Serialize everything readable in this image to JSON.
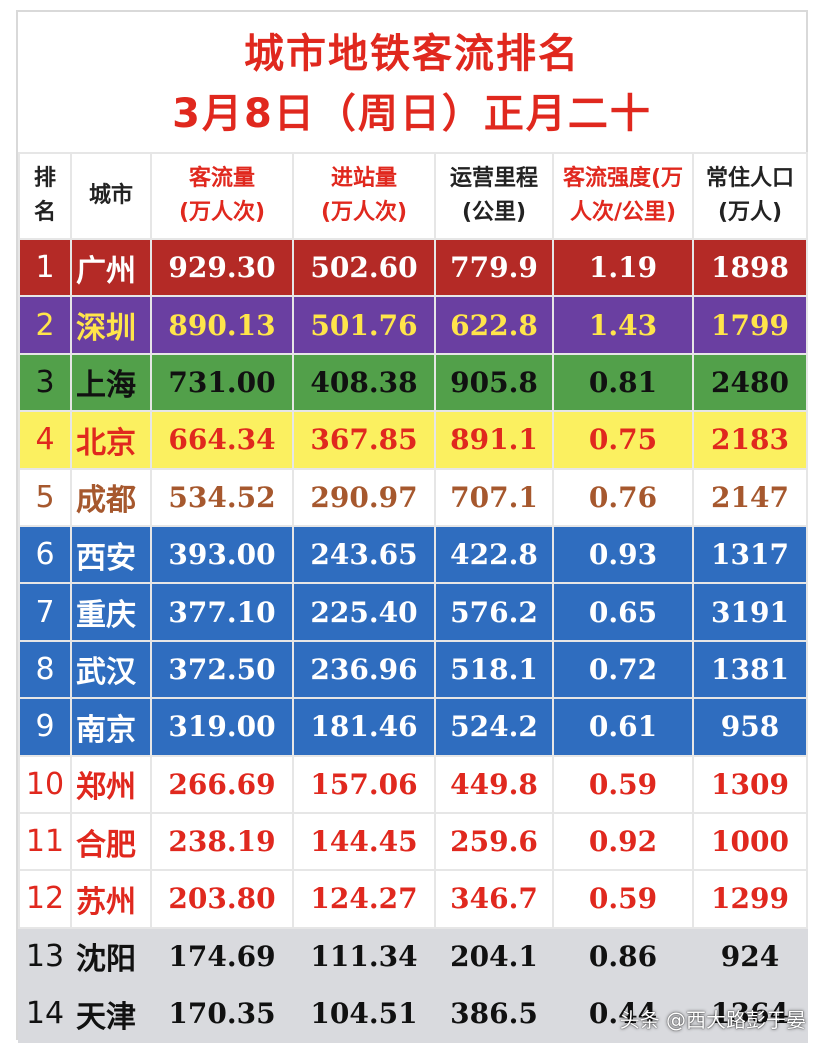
{
  "title": {
    "line1": "城市地铁客流排名",
    "line2": "3月8日（周日）正月二十"
  },
  "headers": {
    "rank": "排\n名",
    "city": "城市",
    "flow": "客流量\n(万人次)",
    "entry": "进站量\n(万人次)",
    "mileage": "运营里程\n(公里)",
    "intensity": "客流强度(万\n人次/公里)",
    "population": "常住人口\n(万人)"
  },
  "colors": {
    "title_red": "#e0281e",
    "row_red": "#b42a26",
    "row_purple": "#6a3fa1",
    "row_green": "#52a04a",
    "row_yellow": "#fbf060",
    "row_blue": "#2f6dbf",
    "row_gray": "#d9dade"
  },
  "rows": [
    {
      "rank": "1",
      "city": "广州",
      "flow": "929.30",
      "entry": "502.60",
      "mileage": "779.9",
      "intensity": "1.19",
      "population": "1898",
      "style": "r-red"
    },
    {
      "rank": "2",
      "city": "深圳",
      "flow": "890.13",
      "entry": "501.76",
      "mileage": "622.8",
      "intensity": "1.43",
      "population": "1799",
      "style": "r-purple"
    },
    {
      "rank": "3",
      "city": "上海",
      "flow": "731.00",
      "entry": "408.38",
      "mileage": "905.8",
      "intensity": "0.81",
      "population": "2480",
      "style": "r-green"
    },
    {
      "rank": "4",
      "city": "北京",
      "flow": "664.34",
      "entry": "367.85",
      "mileage": "891.1",
      "intensity": "0.75",
      "population": "2183",
      "style": "r-yellow"
    },
    {
      "rank": "5",
      "city": "成都",
      "flow": "534.52",
      "entry": "290.97",
      "mileage": "707.1",
      "intensity": "0.76",
      "population": "2147",
      "style": "r-white-brown"
    },
    {
      "rank": "6",
      "city": "西安",
      "flow": "393.00",
      "entry": "243.65",
      "mileage": "422.8",
      "intensity": "0.93",
      "population": "1317",
      "style": "r-blue"
    },
    {
      "rank": "7",
      "city": "重庆",
      "flow": "377.10",
      "entry": "225.40",
      "mileage": "576.2",
      "intensity": "0.65",
      "population": "3191",
      "style": "r-blue"
    },
    {
      "rank": "8",
      "city": "武汉",
      "flow": "372.50",
      "entry": "236.96",
      "mileage": "518.1",
      "intensity": "0.72",
      "population": "1381",
      "style": "r-blue"
    },
    {
      "rank": "9",
      "city": "南京",
      "flow": "319.00",
      "entry": "181.46",
      "mileage": "524.2",
      "intensity": "0.61",
      "population": "958",
      "style": "r-blue"
    },
    {
      "rank": "10",
      "city": "郑州",
      "flow": "266.69",
      "entry": "157.06",
      "mileage": "449.8",
      "intensity": "0.59",
      "population": "1309",
      "style": "r-white-red"
    },
    {
      "rank": "11",
      "city": "合肥",
      "flow": "238.19",
      "entry": "144.45",
      "mileage": "259.6",
      "intensity": "0.92",
      "population": "1000",
      "style": "r-white-red"
    },
    {
      "rank": "12",
      "city": "苏州",
      "flow": "203.80",
      "entry": "124.27",
      "mileage": "346.7",
      "intensity": "0.59",
      "population": "1299",
      "style": "r-white-red"
    },
    {
      "rank": "13",
      "city": "沈阳",
      "flow": "174.69",
      "entry": "111.34",
      "mileage": "204.1",
      "intensity": "0.86",
      "population": "924",
      "style": "r-gray"
    },
    {
      "rank": "14",
      "city": "天津",
      "flow": "170.35",
      "entry": "104.51",
      "mileage": "386.5",
      "intensity": "0.44",
      "population": "1364",
      "style": "r-gray"
    }
  ],
  "watermark": "头条 @西大路彭于晏"
}
